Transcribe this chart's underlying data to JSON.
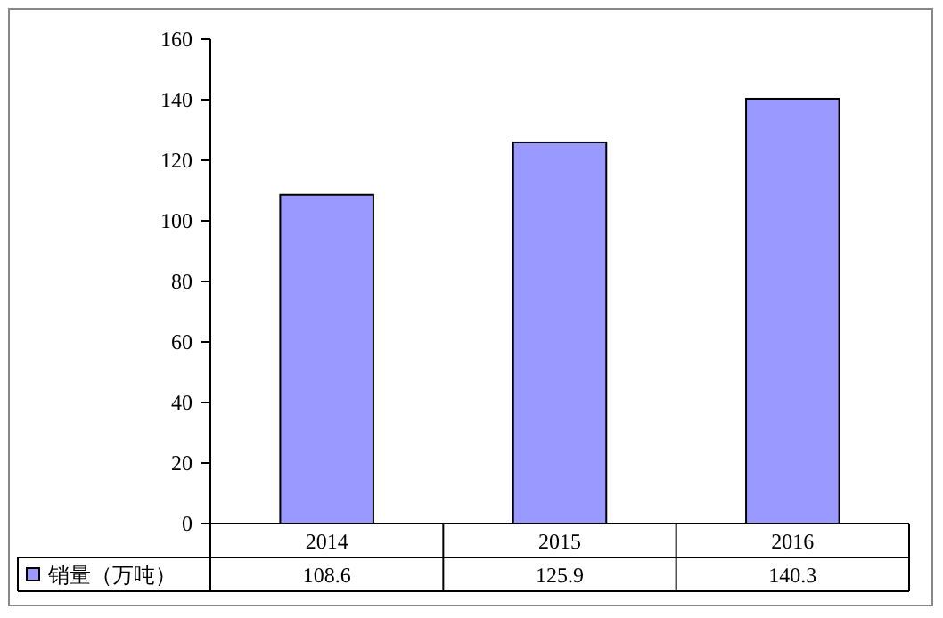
{
  "chart_data": {
    "type": "bar",
    "categories": [
      "2014",
      "2015",
      "2016"
    ],
    "series": [
      {
        "name": "销量（万吨）",
        "color": "#9999ff",
        "values": [
          108.6,
          125.9,
          140.3
        ]
      }
    ],
    "ylim": [
      0,
      160
    ],
    "yticks": [
      0,
      20,
      40,
      60,
      80,
      100,
      120,
      140,
      160
    ],
    "data_labels": true,
    "legend": "bottom"
  }
}
